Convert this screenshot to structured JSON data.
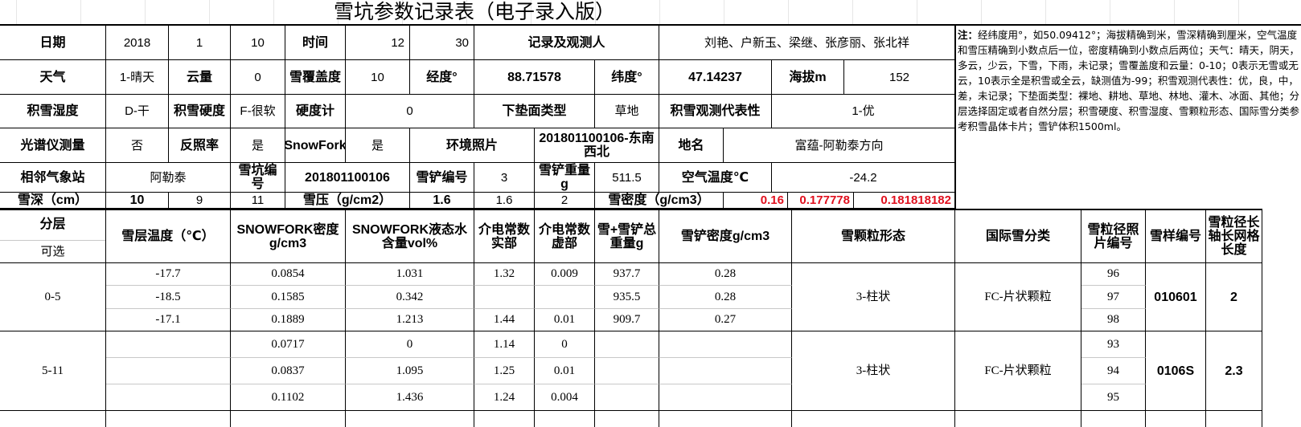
{
  "title": "雪坑参数记录表（电子录入版）",
  "note": {
    "label": "注：",
    "text": "经纬度用°，如50.09412°；海拔精确到米，雪深精确到厘米，空气温度和雪压精确到小数点后一位，密度精确到小数点后两位；天气：晴天，阴天，多云，少云，下雪，下雨，未记录；雪覆盖度和云量：0-10；0表示无雪或无云，10表示全是积雪或全云，缺测值为-99；积雪观测代表性：优，良，中，差，未记录；下垫面类型：裸地、耕地、草地、林地、灌木、冰面、其他；分层选择固定或者自然分层；积雪硬度、积雪湿度、雪颗粒形态、国际雪分类参考积雪晶体卡片；雪铲体积1500ml。"
  },
  "header": {
    "date_label": "日期",
    "year": "2018",
    "month": "1",
    "day": "10",
    "time_label": "时间",
    "hour": "12",
    "minute": "30",
    "observers_label": "记录及观测人",
    "observers": "刘艳、户新玉、梁继、张彦丽、张北祥",
    "weather_label": "天气",
    "weather": "1-晴天",
    "cloud_label": "云量",
    "cloud": "0",
    "snow_cover_label": "雪覆盖度",
    "snow_cover": "10",
    "lon_label": "经度°",
    "lon": "88.71578",
    "lat_label": "纬度°",
    "lat": "47.14237",
    "alt_label": "海拔m",
    "alt": "152",
    "wetness_label": "积雪湿度",
    "wetness": "D-干",
    "hardness_label": "积雪硬度",
    "hardness": "F-很软",
    "hardness_meter_label": "硬度计",
    "hardness_meter": "0",
    "surface_label": "下垫面类型",
    "surface": "草地",
    "represent_label": "积雪观测代表性",
    "represent": "1-优",
    "spectro_label": "光谱仪测量",
    "spectro": "否",
    "albedo_label": "反照率",
    "albedo": "是",
    "snowfork_label": "SnowFork",
    "snowfork": "是",
    "env_photo_label": "环境照片",
    "env_photo": "201801100106-东南西北",
    "place_label": "地名",
    "place": "富蕴-阿勒泰方向",
    "station_label": "相邻气象站",
    "station": "阿勒泰",
    "pit_id_label": "雪坑编号",
    "pit_id": "201801100106",
    "shovel_id_label": "雪铲编号",
    "shovel_id": "3",
    "shovel_weight_label": "雪铲重量g",
    "shovel_weight": "511.5",
    "air_temp_label": "空气温度℃",
    "air_temp": "-24.2",
    "depth_label": "雪深（cm）",
    "depth": [
      "10",
      "9",
      "11"
    ],
    "swe_label": "雪压（g/cm2）",
    "swe": [
      "1.6",
      "1.6",
      "2"
    ],
    "density_label": "雪密度（g/cm3）",
    "density": [
      "0.16",
      "0.177778",
      "0.181818182"
    ]
  },
  "columns": {
    "layer": "分层",
    "optional": "可选",
    "temp": "雪层温度（℃）",
    "sf_density": "SNOWFORK密度g/cm3",
    "sf_lwc": "SNOWFORK液态水含量vol%",
    "eps_real": "介电常数实部",
    "eps_imag": "介电常数虚部",
    "total_weight": "雪+雪铲总重量g",
    "shovel_density": "雪铲密度g/cm3",
    "grain_shape": "雪颗粒形态",
    "intl_class": "国际雪分类",
    "photo_id": "雪粒径照片编号",
    "sample_id": "雪样编号",
    "grain_len": "雪粒径长轴长网格长度"
  },
  "layers": [
    {
      "range": "0-5",
      "grain_shape": "3-柱状",
      "intl_class": "FC-片状颗粒",
      "sample_id": "010601",
      "grain_len": "2",
      "rows": [
        {
          "temp": "-17.7",
          "sf_density": "0.0854",
          "sf_lwc": "1.031",
          "eps_real": "1.32",
          "eps_imag": "0.009",
          "total_weight": "937.7",
          "shovel_density": "0.28",
          "photo_id": "96"
        },
        {
          "temp": "-18.5",
          "sf_density": "0.1585",
          "sf_lwc": "0.342",
          "eps_real": "",
          "eps_imag": "",
          "total_weight": "935.5",
          "shovel_density": "0.28",
          "photo_id": "97"
        },
        {
          "temp": "-17.1",
          "sf_density": "0.1889",
          "sf_lwc": "1.213",
          "eps_real": "1.44",
          "eps_imag": "0.01",
          "total_weight": "909.7",
          "shovel_density": "0.27",
          "photo_id": "98"
        }
      ]
    },
    {
      "range": "5-11",
      "grain_shape": "3-柱状",
      "intl_class": "FC-片状颗粒",
      "sample_id": "0106S",
      "grain_len": "2.3",
      "rows": [
        {
          "temp": "",
          "sf_density": "0.0717",
          "sf_lwc": "0",
          "eps_real": "1.14",
          "eps_imag": "0",
          "total_weight": "",
          "shovel_density": "",
          "photo_id": "93"
        },
        {
          "temp": "",
          "sf_density": "0.0837",
          "sf_lwc": "1.095",
          "eps_real": "1.25",
          "eps_imag": "0.01",
          "total_weight": "",
          "shovel_density": "",
          "photo_id": "94"
        },
        {
          "temp": "",
          "sf_density": "0.1102",
          "sf_lwc": "1.436",
          "eps_real": "1.24",
          "eps_imag": "0.004",
          "total_weight": "",
          "shovel_density": "",
          "photo_id": "95"
        }
      ]
    }
  ]
}
